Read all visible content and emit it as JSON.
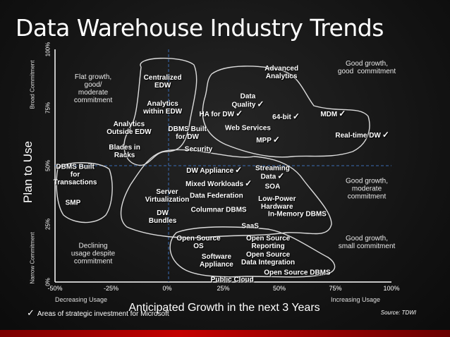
{
  "title": "Data Warehouse Industry Trends",
  "check_glyph": "✓",
  "chart_data": {
    "type": "scatter",
    "xlabel": "Anticipated Growth in the next 3 Years",
    "ylabel": "Plan to Use",
    "x_ticks": [
      "-50%",
      "-25%",
      "0%",
      "25%",
      "50%",
      "75%",
      "100%"
    ],
    "y_ticks": [
      "0%",
      "25%",
      "50%",
      "75%",
      "100%"
    ],
    "xlim": [
      -50,
      100
    ],
    "ylim": [
      0,
      100
    ],
    "x_low_label": "Decreasing Usage",
    "x_high_label": "Increasing Usage",
    "y_low_label": "Narrow Commitment",
    "y_high_label": "Broad Commitment",
    "dashed_lines": {
      "x": 0,
      "y": 50
    },
    "points": [
      {
        "label": "Centralized\nEDW",
        "x": -2,
        "y": 86,
        "check": false
      },
      {
        "label": "Analytics\nwithin EDW",
        "x": -2,
        "y": 75,
        "check": false
      },
      {
        "label": "Analytics\nOutside EDW",
        "x": -17,
        "y": 66,
        "check": false
      },
      {
        "label": "DBMS Built\nfor DW",
        "x": 9,
        "y": 64,
        "check": false
      },
      {
        "label": "Blades in\nRacks",
        "x": -19,
        "y": 56,
        "check": false
      },
      {
        "label": "Advanced\nAnalytics",
        "x": 51,
        "y": 90,
        "check": false
      },
      {
        "label": "Data\nQuality",
        "x": 36,
        "y": 78,
        "check": true
      },
      {
        "label": "HA for DW",
        "x": 24,
        "y": 72,
        "check": true
      },
      {
        "label": "64-bit",
        "x": 53,
        "y": 71,
        "check": true
      },
      {
        "label": "MDM",
        "x": 74,
        "y": 72,
        "check": true
      },
      {
        "label": "Web Services",
        "x": 36,
        "y": 66,
        "check": false
      },
      {
        "label": "Real-time DW",
        "x": 87,
        "y": 63,
        "check": true
      },
      {
        "label": "MPP",
        "x": 45,
        "y": 61,
        "check": true
      },
      {
        "label": "Security",
        "x": 14,
        "y": 57,
        "check": false
      },
      {
        "label": "DW Appliance",
        "x": 21,
        "y": 48,
        "check": true
      },
      {
        "label": "Streaming\nData",
        "x": 47,
        "y": 47,
        "check": true
      },
      {
        "label": "Mixed Workloads",
        "x": 23,
        "y": 42,
        "check": true
      },
      {
        "label": "SOA",
        "x": 47,
        "y": 41,
        "check": false
      },
      {
        "label": "Server\nVirtualization",
        "x": 0,
        "y": 37,
        "check": false
      },
      {
        "label": "Data Federation",
        "x": 22,
        "y": 37,
        "check": false
      },
      {
        "label": "Low-Power\nHardware",
        "x": 49,
        "y": 34,
        "check": false
      },
      {
        "label": "Columnar DBMS",
        "x": 23,
        "y": 31,
        "check": false
      },
      {
        "label": "In-Memory DBMS",
        "x": 58,
        "y": 29,
        "check": false
      },
      {
        "label": "DW\nBundles",
        "x": -2,
        "y": 28,
        "check": false
      },
      {
        "label": "SaaS",
        "x": 37,
        "y": 24,
        "check": false
      },
      {
        "label": "Open Source\nOS",
        "x": 14,
        "y": 17,
        "check": false
      },
      {
        "label": "Open Source\nReporting",
        "x": 45,
        "y": 17,
        "check": false
      },
      {
        "label": "Software\nAppliance",
        "x": 22,
        "y": 9,
        "check": false
      },
      {
        "label": "Open Source\nData Integration",
        "x": 45,
        "y": 10,
        "check": false
      },
      {
        "label": "Open Source DBMS",
        "x": 58,
        "y": 4,
        "check": false
      },
      {
        "label": "Public Cloud",
        "x": 29,
        "y": 1,
        "check": false
      },
      {
        "label": "DBMS Built\nfor\nTransactions",
        "x": -41,
        "y": 46,
        "check": false
      },
      {
        "label": "SMP",
        "x": -42,
        "y": 34,
        "check": false
      }
    ],
    "annotations": [
      {
        "text": "Flat growth,\ngood/\nmoderate\ncommitment",
        "x": -33,
        "y": 83
      },
      {
        "text": "Good growth,\ngood  commitment",
        "x": 89,
        "y": 92
      },
      {
        "text": "Good growth,\nmoderate\ncommitment",
        "x": 89,
        "y": 40
      },
      {
        "text": "Declining\nusage despite\ncommitment",
        "x": -33,
        "y": 12
      },
      {
        "text": "Good growth,\nsmall commitment",
        "x": 89,
        "y": 17
      }
    ]
  },
  "legend": "Areas of strategic investment for Microsoft",
  "source": "Source: TDWI"
}
